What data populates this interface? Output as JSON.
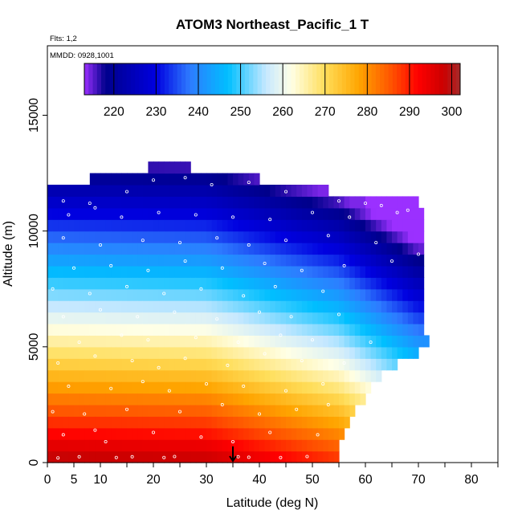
{
  "chart_data": {
    "type": "heatmap",
    "title": "ATOM3 Northeast_Pacific_1 T",
    "info_lines": [
      "Flts: 1,2",
      "MMDD: 0928,1001"
    ],
    "xlabel": "Latitude (deg N)",
    "ylabel": "Altitude (m)",
    "xlim": [
      0,
      85
    ],
    "ylim": [
      0,
      18000
    ],
    "x_ticks": [
      0,
      5,
      10,
      20,
      30,
      40,
      50,
      60,
      70,
      80
    ],
    "y_ticks": [
      0,
      5000,
      10000,
      15000
    ],
    "colorbar": {
      "range": [
        213,
        302
      ],
      "ticks": [
        220,
        230,
        240,
        250,
        260,
        270,
        280,
        290,
        300
      ],
      "stops": [
        {
          "v": 213,
          "c": "#9b30ff"
        },
        {
          "v": 218,
          "c": "#00008b"
        },
        {
          "v": 230,
          "c": "#0000e0"
        },
        {
          "v": 238,
          "c": "#2e7bff"
        },
        {
          "v": 247,
          "c": "#00bfff"
        },
        {
          "v": 256,
          "c": "#c6e8ff"
        },
        {
          "v": 262,
          "c": "#ffffe6"
        },
        {
          "v": 270,
          "c": "#ffde5a"
        },
        {
          "v": 278,
          "c": "#ffa500"
        },
        {
          "v": 286,
          "c": "#ff5000"
        },
        {
          "v": 292,
          "c": "#ff0000"
        },
        {
          "v": 298,
          "c": "#cc0000"
        },
        {
          "v": 302,
          "c": "#a52a2a"
        }
      ]
    },
    "profiles": [
      {
        "lat0": 0,
        "lat1": 55,
        "alt_top": 0,
        "values": []
      }
    ],
    "envelope": [
      [
        0,
        11500
      ],
      [
        0.5,
        12000
      ],
      [
        8,
        12000
      ],
      [
        8,
        12500
      ],
      [
        19,
        12500
      ],
      [
        19,
        12900
      ],
      [
        27.5,
        12900
      ],
      [
        27.5,
        12500
      ],
      [
        40,
        12500
      ],
      [
        40,
        12000
      ],
      [
        53,
        12000
      ],
      [
        53,
        11500
      ],
      [
        70,
        11500
      ],
      [
        70,
        10900
      ],
      [
        71,
        10900
      ],
      [
        71,
        5500
      ],
      [
        72,
        5500
      ],
      [
        72,
        5000
      ],
      [
        70,
        5000
      ],
      [
        70,
        4500
      ],
      [
        66,
        4500
      ],
      [
        66,
        4000
      ],
      [
        63,
        4000
      ],
      [
        63,
        3500
      ],
      [
        61,
        3500
      ],
      [
        61,
        3000
      ],
      [
        60,
        3000
      ],
      [
        60,
        2500
      ],
      [
        58,
        2500
      ],
      [
        58,
        2000
      ],
      [
        57,
        2000
      ],
      [
        57,
        1500
      ],
      [
        56,
        1500
      ],
      [
        56,
        1000
      ],
      [
        55,
        1000
      ],
      [
        55,
        500
      ],
      [
        55,
        0
      ],
      [
        0,
        0
      ]
    ],
    "temperature_field": {
      "lapse_K_per_km": 6.5,
      "surface_T_by_lat": [
        [
          0,
          300
        ],
        [
          30,
          299
        ],
        [
          40,
          295
        ],
        [
          55,
          289
        ],
        [
          70,
          275
        ]
      ]
    },
    "observations": [
      [
        2,
        200
      ],
      [
        6,
        250
      ],
      [
        13,
        220
      ],
      [
        16,
        250
      ],
      [
        22,
        220
      ],
      [
        24,
        260
      ],
      [
        36,
        250
      ],
      [
        38,
        230
      ],
      [
        44,
        220
      ],
      [
        49,
        260
      ],
      [
        3,
        1200
      ],
      [
        11,
        900
      ],
      [
        9,
        1400
      ],
      [
        20,
        1300
      ],
      [
        29,
        1100
      ],
      [
        35,
        900
      ],
      [
        42,
        1300
      ],
      [
        51,
        1200
      ],
      [
        1,
        2200
      ],
      [
        7,
        2100
      ],
      [
        15,
        2300
      ],
      [
        25,
        2200
      ],
      [
        33,
        2500
      ],
      [
        40,
        2100
      ],
      [
        47,
        2300
      ],
      [
        53,
        2500
      ],
      [
        4,
        3300
      ],
      [
        12,
        3200
      ],
      [
        18,
        3500
      ],
      [
        23,
        3100
      ],
      [
        30,
        3400
      ],
      [
        37,
        3300
      ],
      [
        45,
        3100
      ],
      [
        52,
        3400
      ],
      [
        2,
        4300
      ],
      [
        9,
        4600
      ],
      [
        16,
        4400
      ],
      [
        21,
        4100
      ],
      [
        26,
        4500
      ],
      [
        34,
        4200
      ],
      [
        41,
        4700
      ],
      [
        48,
        4400
      ],
      [
        56,
        4300
      ],
      [
        6,
        5200
      ],
      [
        14,
        5500
      ],
      [
        19,
        5300
      ],
      [
        28,
        5400
      ],
      [
        36,
        5200
      ],
      [
        44,
        5500
      ],
      [
        50,
        5300
      ],
      [
        61,
        5200
      ],
      [
        3,
        6300
      ],
      [
        10,
        6600
      ],
      [
        17,
        6300
      ],
      [
        24,
        6500
      ],
      [
        32,
        6200
      ],
      [
        40,
        6500
      ],
      [
        46,
        6300
      ],
      [
        55,
        6400
      ],
      [
        1,
        7500
      ],
      [
        8,
        7300
      ],
      [
        15,
        7600
      ],
      [
        22,
        7300
      ],
      [
        29,
        7500
      ],
      [
        37,
        7200
      ],
      [
        43,
        7600
      ],
      [
        52,
        7400
      ],
      [
        5,
        8400
      ],
      [
        12,
        8500
      ],
      [
        19,
        8300
      ],
      [
        26,
        8700
      ],
      [
        33,
        8400
      ],
      [
        41,
        8600
      ],
      [
        48,
        8300
      ],
      [
        56,
        8500
      ],
      [
        65,
        8700
      ],
      [
        3,
        9700
      ],
      [
        10,
        9400
      ],
      [
        18,
        9600
      ],
      [
        25,
        9500
      ],
      [
        32,
        9700
      ],
      [
        38,
        9400
      ],
      [
        45,
        9600
      ],
      [
        53,
        9800
      ],
      [
        62,
        9500
      ],
      [
        70,
        9000
      ],
      [
        4,
        10700
      ],
      [
        9,
        11000
      ],
      [
        14,
        10600
      ],
      [
        21,
        10800
      ],
      [
        28,
        10700
      ],
      [
        35,
        10600
      ],
      [
        42,
        10500
      ],
      [
        50,
        10800
      ],
      [
        57,
        10600
      ],
      [
        3,
        11300
      ],
      [
        8,
        11200
      ],
      [
        15,
        11700
      ],
      [
        20,
        12200
      ],
      [
        26,
        12300
      ],
      [
        31,
        12000
      ],
      [
        38,
        12100
      ],
      [
        45,
        11700
      ],
      [
        66,
        10800
      ],
      [
        68,
        10900
      ],
      [
        60,
        11200
      ],
      [
        63,
        11100
      ],
      [
        55,
        11300
      ]
    ],
    "marker": {
      "lat": 35,
      "alt": 700,
      "label": "arrow"
    }
  }
}
